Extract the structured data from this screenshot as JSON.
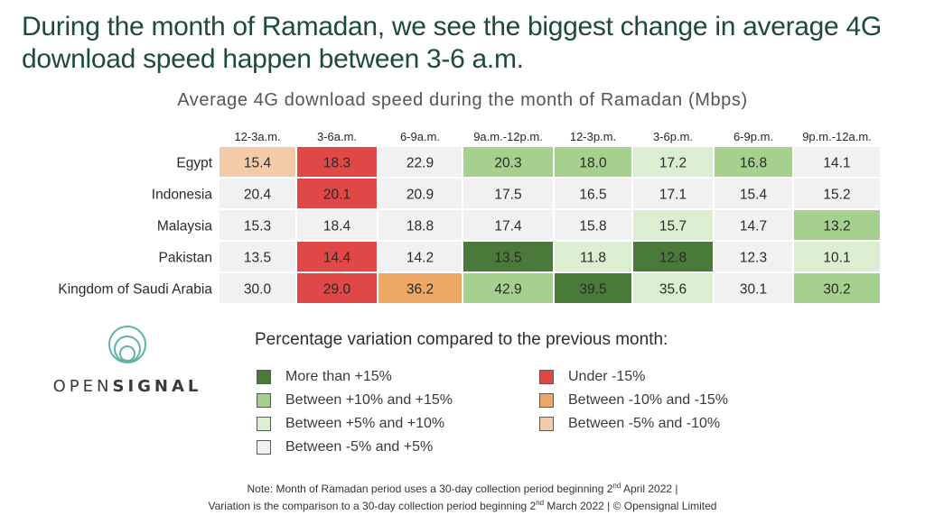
{
  "headline": "During the month of Ramadan, we see the biggest change in average 4G download speed happen between 3-6 a.m.",
  "chart_data": {
    "type": "heatmap",
    "title": "Average 4G download speed during the month of Ramadan (Mbps)",
    "columns": [
      "12-3a.m.",
      "3-6a.m.",
      "6-9a.m.",
      "9a.m.-12p.m.",
      "12-3p.m.",
      "3-6p.m.",
      "6-9p.m.",
      "9p.m.-12a.m."
    ],
    "rows": [
      "Egypt",
      "Indonesia",
      "Malaysia",
      "Pakistan",
      "Kingdom of Saudi Arabia"
    ],
    "values": [
      [
        "15.4",
        "18.3",
        "22.9",
        "20.3",
        "18.0",
        "17.2",
        "16.8",
        "14.1"
      ],
      [
        "20.4",
        "20.1",
        "20.9",
        "17.5",
        "16.5",
        "17.1",
        "15.4",
        "15.2"
      ],
      [
        "15.3",
        "18.4",
        "18.8",
        "17.4",
        "15.8",
        "15.7",
        "14.7",
        "13.2"
      ],
      [
        "13.5",
        "14.4",
        "14.2",
        "13.5",
        "11.8",
        "12.8",
        "12.3",
        "10.1"
      ],
      [
        "30.0",
        "29.0",
        "36.2",
        "42.9",
        "39.5",
        "35.6",
        "30.1",
        "30.2"
      ]
    ],
    "categories": [
      [
        "minus5to10",
        "under15",
        "neutral",
        "plus10to15",
        "plus10to15",
        "plus5to10",
        "plus10to15",
        "neutral"
      ],
      [
        "neutral",
        "under15",
        "neutral",
        "neutral",
        "neutral",
        "neutral",
        "neutral",
        "neutral"
      ],
      [
        "neutral",
        "neutral",
        "neutral",
        "neutral",
        "neutral",
        "plus5to10",
        "neutral",
        "plus10to15"
      ],
      [
        "neutral",
        "under15",
        "neutral",
        "over15",
        "plus5to10",
        "over15",
        "neutral",
        "plus5to10"
      ],
      [
        "neutral",
        "under15",
        "minus10to15",
        "plus10to15",
        "over15",
        "plus5to10",
        "neutral",
        "plus10to15"
      ]
    ],
    "category_colors": {
      "over15": "#4a7a3a",
      "plus10to15": "#a6d08e",
      "plus5to10": "#dceed2",
      "neutral": "#f1f1f1",
      "under15": "#e04848",
      "minus10to15": "#eda766",
      "minus5to10": "#f4cba9"
    }
  },
  "legend": {
    "title": "Percentage variation compared to the previous month:",
    "left": [
      {
        "label": "More than +15%",
        "color": "#4a7a3a"
      },
      {
        "label": "Between +10% and +15%",
        "color": "#a6d08e"
      },
      {
        "label": "Between +5% and +10%",
        "color": "#dceed2"
      },
      {
        "label": "Between -5% and +5%",
        "color": "#f1f1f1"
      }
    ],
    "right": [
      {
        "label": "Under -15%",
        "color": "#e04848"
      },
      {
        "label": "Between -10% and -15%",
        "color": "#eda766"
      },
      {
        "label": "Between -5% and -10%",
        "color": "#f4cba9"
      }
    ]
  },
  "logo": {
    "word_light": "OPEN",
    "word_bold": "SIGNAL",
    "ring_color": "#5fb3a6"
  },
  "note": {
    "line1_a": "Note: Month of Ramadan period uses a 30-day collection period beginning 2",
    "line1_sup": "nd",
    "line1_b": " April 2022 |",
    "line2_a": "Variation is the comparison to a 30-day collection period beginning 2",
    "line2_sup": "nd",
    "line2_b": " March 2022 | © Opensignal Limited"
  }
}
